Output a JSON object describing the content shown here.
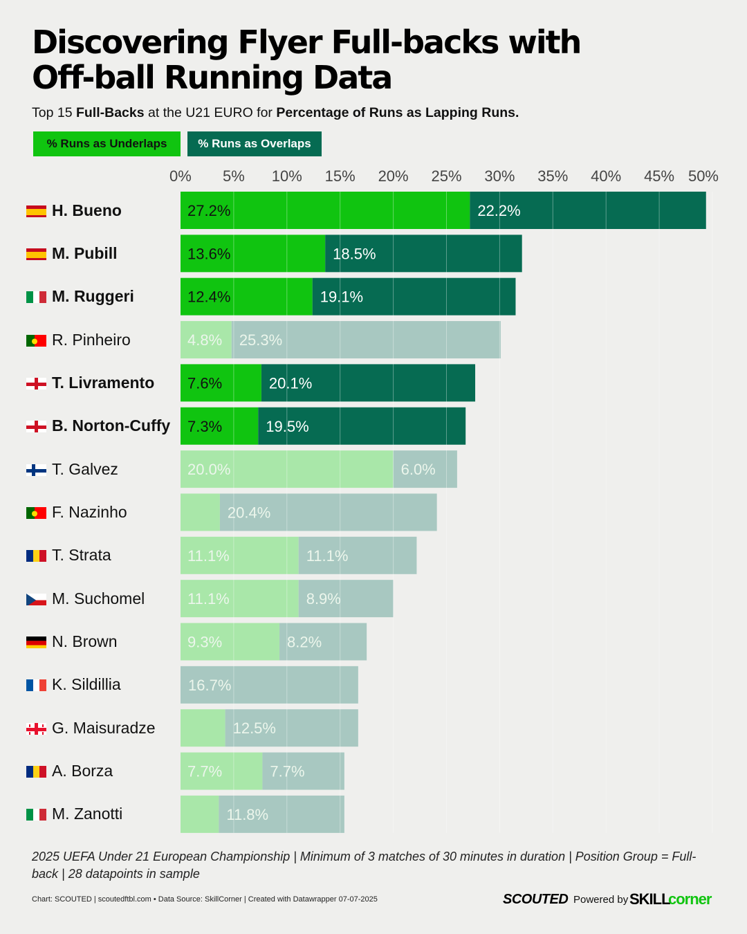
{
  "title": {
    "line1": "Discovering Flyer Full-backs with",
    "line2": "Off-ball Running Data"
  },
  "subtitle": {
    "part1": "Top 15 ",
    "bold1": "Full-Backs",
    "part2": " at the U21 EURO for ",
    "bold2": "Percentage of Runs as Lapping Runs."
  },
  "legend": {
    "underlaps": "% Runs as Underlaps",
    "overlaps": "% Runs as Overlaps"
  },
  "colors": {
    "underlap": "#10c410",
    "overlap": "#066b52",
    "underlap_dim": "#a9e7a9",
    "overlap_dim": "#a8c8c1",
    "label_dim": "#ecf6ec",
    "background": "#efefed"
  },
  "chart_data": {
    "type": "bar",
    "orientation": "horizontal",
    "stacked": true,
    "xlim": [
      0,
      50
    ],
    "ticks": [
      "0%",
      "5%",
      "10%",
      "15%",
      "20%",
      "25%",
      "30%",
      "35%",
      "40%",
      "45%",
      "50%"
    ],
    "tick_values": [
      0,
      5,
      10,
      15,
      20,
      25,
      30,
      35,
      40,
      45,
      50
    ],
    "categories": [
      "H. Bueno",
      "M. Pubill",
      "M. Ruggeri",
      "R. Pinheiro",
      "T. Livramento",
      "B. Norton-Cuffy",
      "T. Galvez",
      "F. Nazinho",
      "T. Strata",
      "M. Suchomel",
      "N. Brown",
      "K. Sildillia",
      "G. Maisuradze",
      "A. Borza",
      "M. Zanotti"
    ],
    "flags": [
      "spain",
      "spain",
      "italy",
      "portugal",
      "england",
      "england",
      "finland",
      "portugal",
      "romania",
      "czechia",
      "germany",
      "france",
      "georgia",
      "romania",
      "italy"
    ],
    "highlighted": [
      true,
      true,
      true,
      false,
      true,
      true,
      false,
      false,
      false,
      false,
      false,
      false,
      false,
      false,
      false
    ],
    "series": [
      {
        "name": "% Runs as Underlaps",
        "values": [
          27.2,
          13.6,
          12.4,
          4.8,
          7.6,
          7.3,
          20.0,
          3.7,
          11.1,
          11.1,
          9.3,
          0,
          4.2,
          7.7,
          3.6
        ],
        "labels": [
          "27.2%",
          "13.6%",
          "12.4%",
          "4.8%",
          "7.6%",
          "7.3%",
          "20.0%",
          "",
          "11.1%",
          "11.1%",
          "9.3%",
          "",
          "",
          "7.7%",
          ""
        ]
      },
      {
        "name": "% Runs as Overlaps",
        "values": [
          22.2,
          18.5,
          19.1,
          25.3,
          20.1,
          19.5,
          6.0,
          20.4,
          11.1,
          8.9,
          8.2,
          16.7,
          12.5,
          7.7,
          11.8
        ],
        "labels": [
          "22.2%",
          "18.5%",
          "19.1%",
          "25.3%",
          "20.1%",
          "19.5%",
          "6.0%",
          "20.4%",
          "11.1%",
          "8.9%",
          "8.2%",
          "16.7%",
          "12.5%",
          "7.7%",
          "11.8%"
        ]
      }
    ]
  },
  "footnote": "2025 UEFA Under 21 European Championship | Minimum of 3 matches of 30 minutes in duration | Position Group = Full-back | 28 datapoints in sample",
  "credit": "Chart: SCOUTED | scoutedftbl.com • Data Source: SkillCorner | Created with Datawrapper 07-07-2025",
  "brand": {
    "scouted": "SCOUTED",
    "powered": "Powered by",
    "skill": "SKILL",
    "corner": "corner"
  }
}
